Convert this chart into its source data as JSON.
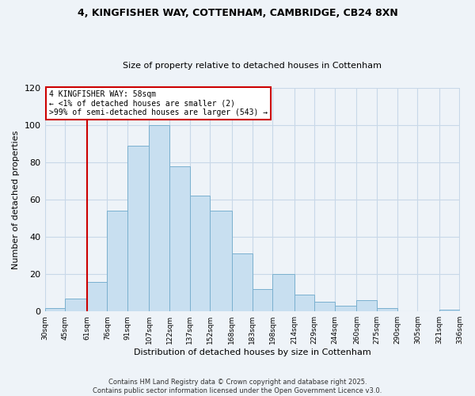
{
  "title": "4, KINGFISHER WAY, COTTENHAM, CAMBRIDGE, CB24 8XN",
  "subtitle": "Size of property relative to detached houses in Cottenham",
  "xlabel": "Distribution of detached houses by size in Cottenham",
  "ylabel": "Number of detached properties",
  "bar_color": "#c8dff0",
  "bar_edge_color": "#7ab0cf",
  "grid_color": "#c8d8e8",
  "background_color": "#eef3f8",
  "plot_bg_color": "#eef3f8",
  "vline_x": 61,
  "vline_color": "#cc0000",
  "bin_edges": [
    30,
    45,
    61,
    76,
    91,
    107,
    122,
    137,
    152,
    168,
    183,
    198,
    214,
    229,
    244,
    260,
    275,
    290,
    305,
    321,
    336
  ],
  "bar_heights": [
    2,
    7,
    16,
    54,
    89,
    100,
    78,
    62,
    54,
    31,
    12,
    20,
    9,
    5,
    3,
    6,
    2,
    0,
    0,
    1
  ],
  "ylim": [
    0,
    120
  ],
  "yticks": [
    0,
    20,
    40,
    60,
    80,
    100,
    120
  ],
  "annotation_title": "4 KINGFISHER WAY: 58sqm",
  "annotation_line1": "← <1% of detached houses are smaller (2)",
  "annotation_line2": ">99% of semi-detached houses are larger (543) →",
  "annotation_box_color": "white",
  "annotation_box_edge": "#cc0000",
  "footnote1": "Contains HM Land Registry data © Crown copyright and database right 2025.",
  "footnote2": "Contains public sector information licensed under the Open Government Licence v3.0."
}
